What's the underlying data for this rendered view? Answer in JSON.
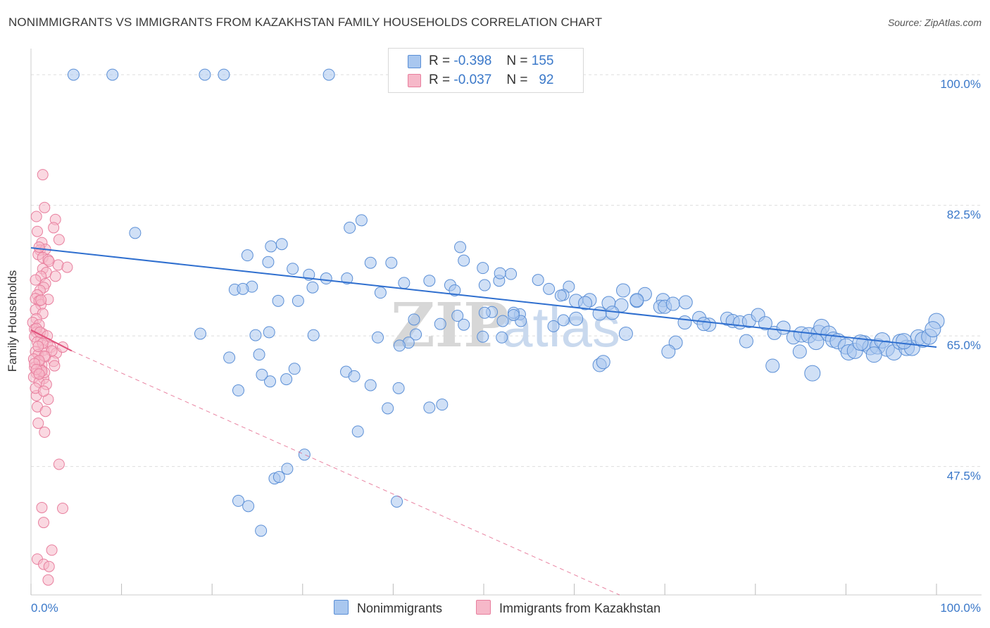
{
  "title": "NONIMMIGRANTS VS IMMIGRANTS FROM KAZAKHSTAN FAMILY HOUSEHOLDS CORRELATION CHART",
  "source": "Source: ZipAtlas.com",
  "watermark": {
    "zip": "ZIP",
    "atlas": "atlas"
  },
  "legend_top": [
    {
      "r_label": "R =",
      "r_value": "-0.398",
      "n_label": "N =",
      "n_value": "155"
    },
    {
      "r_label": "R =",
      "r_value": "-0.037",
      "n_label": "N =",
      "n_value": "92"
    }
  ],
  "legend_bottom": [
    "Nonimmigrants",
    "Immigrants from Kazakhstan"
  ],
  "colors": {
    "blue_fill": "#a9c7ef",
    "blue_stroke": "#5b8fd6",
    "blue_line": "#2f6fcf",
    "pink_fill": "#f6b8c9",
    "pink_stroke": "#e87f9e",
    "pink_line": "#e0507a",
    "tick_text": "#3a78c9",
    "grid": "#dddddd"
  },
  "chart_data": {
    "type": "scatter",
    "title": "NONIMMIGRANTS VS IMMIGRANTS FROM KAZAKHSTAN FAMILY HOUSEHOLDS CORRELATION CHART",
    "xlabel": "",
    "ylabel": "Family Households",
    "xlim": [
      0,
      100
    ],
    "ylim": [
      30.3,
      103.5
    ],
    "x_tick_labels": [
      "0.0%",
      "100.0%"
    ],
    "y_ticks": [
      47.5,
      65.0,
      82.5,
      100.0
    ],
    "y_tick_labels": [
      "47.5%",
      "65.0%",
      "82.5%",
      "100.0%"
    ],
    "series": [
      {
        "name": "Nonimmigrants",
        "color": "#5b8fd6",
        "R": -0.398,
        "N": 155,
        "trend": {
          "x": [
            0,
            100
          ],
          "y": [
            76.8,
            63.5
          ]
        },
        "points": [
          [
            4.7,
            100
          ],
          [
            9.0,
            100
          ],
          [
            19.2,
            100
          ],
          [
            21.3,
            100
          ],
          [
            32.9,
            100
          ],
          [
            11.5,
            78.8
          ],
          [
            36.5,
            80.5
          ],
          [
            35.2,
            79.5
          ],
          [
            26.5,
            77.0
          ],
          [
            27.7,
            77.3
          ],
          [
            47.4,
            76.9
          ],
          [
            23.9,
            75.8
          ],
          [
            37.5,
            74.8
          ],
          [
            39.8,
            74.8
          ],
          [
            26.2,
            74.9
          ],
          [
            28.9,
            74.0
          ],
          [
            30.7,
            73.2
          ],
          [
            32.6,
            72.7
          ],
          [
            34.9,
            72.7
          ],
          [
            31.1,
            71.5
          ],
          [
            24.4,
            71.6
          ],
          [
            22.5,
            71.2
          ],
          [
            23.4,
            71.3
          ],
          [
            38.6,
            70.8
          ],
          [
            46.3,
            71.8
          ],
          [
            46.8,
            71.1
          ],
          [
            50.1,
            71.8
          ],
          [
            51.7,
            72.4
          ],
          [
            49.9,
            74.1
          ],
          [
            47.8,
            75.1
          ],
          [
            53.0,
            73.3
          ],
          [
            51.8,
            73.4
          ],
          [
            41.2,
            72.1
          ],
          [
            44.0,
            72.4
          ],
          [
            56.0,
            72.5
          ],
          [
            59.4,
            71.6
          ],
          [
            65.4,
            71.1
          ],
          [
            58.8,
            70.5
          ],
          [
            67.8,
            70.6
          ],
          [
            60.2,
            69.7
          ],
          [
            61.7,
            69.8
          ],
          [
            63.8,
            69.4
          ],
          [
            66.9,
            69.7
          ],
          [
            69.8,
            69.8
          ],
          [
            65.2,
            69.1
          ],
          [
            69.5,
            68.9
          ],
          [
            70.0,
            68.9
          ],
          [
            70.9,
            69.3
          ],
          [
            72.3,
            69.5
          ],
          [
            64.2,
            68.1
          ],
          [
            62.8,
            68.0
          ],
          [
            60.2,
            67.3
          ],
          [
            58.8,
            67.1
          ],
          [
            54.0,
            67.9
          ],
          [
            53.3,
            68.1
          ],
          [
            50.9,
            68.2
          ],
          [
            50.1,
            68.1
          ],
          [
            47.1,
            67.7
          ],
          [
            42.3,
            67.2
          ],
          [
            57.7,
            66.3
          ],
          [
            54.1,
            67.0
          ],
          [
            57.2,
            71.3
          ],
          [
            72.2,
            66.8
          ],
          [
            73.8,
            67.4
          ],
          [
            74.9,
            66.5
          ],
          [
            76.9,
            67.3
          ],
          [
            77.5,
            67.0
          ],
          [
            78.3,
            66.8
          ],
          [
            79.3,
            67.0
          ],
          [
            80.3,
            67.8
          ],
          [
            81.1,
            66.7
          ],
          [
            82.1,
            65.4
          ],
          [
            83.1,
            66.1
          ],
          [
            84.2,
            64.8
          ],
          [
            85.1,
            65.2
          ],
          [
            85.9,
            65.1
          ],
          [
            87.0,
            65.4
          ],
          [
            87.3,
            66.2
          ],
          [
            88.1,
            65.3
          ],
          [
            88.6,
            64.5
          ],
          [
            89.1,
            64.3
          ],
          [
            90.0,
            63.6
          ],
          [
            90.3,
            62.8
          ],
          [
            91.0,
            63.0
          ],
          [
            92.0,
            64.0
          ],
          [
            92.7,
            63.5
          ],
          [
            93.5,
            63.6
          ],
          [
            94.0,
            64.4
          ],
          [
            94.5,
            63.3
          ],
          [
            95.3,
            62.8
          ],
          [
            96.0,
            64.2
          ],
          [
            96.7,
            63.4
          ],
          [
            97.3,
            63.4
          ],
          [
            98.0,
            64.8
          ],
          [
            98.5,
            64.5
          ],
          [
            99.2,
            64.9
          ],
          [
            100.0,
            67.0
          ],
          [
            99.6,
            65.9
          ],
          [
            96.4,
            64.3
          ],
          [
            93.1,
            62.5
          ],
          [
            91.6,
            64.1
          ],
          [
            86.7,
            64.2
          ],
          [
            84.9,
            62.9
          ],
          [
            81.9,
            61.0
          ],
          [
            86.3,
            60.0
          ],
          [
            79.0,
            64.3
          ],
          [
            74.3,
            66.6
          ],
          [
            71.2,
            64.1
          ],
          [
            70.4,
            62.9
          ],
          [
            66.9,
            69.8
          ],
          [
            65.7,
            65.3
          ],
          [
            62.8,
            61.1
          ],
          [
            63.2,
            61.5
          ],
          [
            53.3,
            67.8
          ],
          [
            52.1,
            67.0
          ],
          [
            58.5,
            70.4
          ],
          [
            61.2,
            69.4
          ],
          [
            49.9,
            64.9
          ],
          [
            52.0,
            64.8
          ],
          [
            47.8,
            66.5
          ],
          [
            45.2,
            66.6
          ],
          [
            42.5,
            65.2
          ],
          [
            41.7,
            64.1
          ],
          [
            38.3,
            64.8
          ],
          [
            31.2,
            65.1
          ],
          [
            29.5,
            69.7
          ],
          [
            27.3,
            69.7
          ],
          [
            26.3,
            65.5
          ],
          [
            25.2,
            62.5
          ],
          [
            21.9,
            62.1
          ],
          [
            18.7,
            65.3
          ],
          [
            28.2,
            59.2
          ],
          [
            26.4,
            58.9
          ],
          [
            29.1,
            60.6
          ],
          [
            22.9,
            57.7
          ],
          [
            34.8,
            60.2
          ],
          [
            40.6,
            58.0
          ],
          [
            45.4,
            55.8
          ],
          [
            44.0,
            55.4
          ],
          [
            39.4,
            55.3
          ],
          [
            36.1,
            52.2
          ],
          [
            26.9,
            45.9
          ],
          [
            22.9,
            42.9
          ],
          [
            25.4,
            38.9
          ],
          [
            40.4,
            42.8
          ],
          [
            30.2,
            49.1
          ],
          [
            28.3,
            47.2
          ],
          [
            27.4,
            46.1
          ],
          [
            24.0,
            42.2
          ],
          [
            24.8,
            65.1
          ],
          [
            25.5,
            59.8
          ],
          [
            35.7,
            59.6
          ],
          [
            37.5,
            58.4
          ],
          [
            40.7,
            63.7
          ]
        ]
      },
      {
        "name": "Immigrants from Kazakhstan",
        "color": "#e87f9e",
        "R": -0.037,
        "N": 92,
        "trend_solid": {
          "x": [
            0,
            4.5
          ],
          "y": [
            65.8,
            63.0
          ]
        },
        "trend_dashed": {
          "x": [
            4.5,
            65
          ],
          "y": [
            63.0,
            30.3
          ]
        },
        "points": [
          [
            1.3,
            86.6
          ],
          [
            1.5,
            82.2
          ],
          [
            0.6,
            81.0
          ],
          [
            2.7,
            80.6
          ],
          [
            2.5,
            79.5
          ],
          [
            0.7,
            79.0
          ],
          [
            3.1,
            77.9
          ],
          [
            1.2,
            77.5
          ],
          [
            1.0,
            76.5
          ],
          [
            1.6,
            76.6
          ],
          [
            0.8,
            75.9
          ],
          [
            1.3,
            75.5
          ],
          [
            1.9,
            75.2
          ],
          [
            2.0,
            75.0
          ],
          [
            3.0,
            74.5
          ],
          [
            1.3,
            74.0
          ],
          [
            1.7,
            73.5
          ],
          [
            1.1,
            73.0
          ],
          [
            0.5,
            72.5
          ],
          [
            1.6,
            72.0
          ],
          [
            1.4,
            71.5
          ],
          [
            1.0,
            71.1
          ],
          [
            0.7,
            70.5
          ],
          [
            0.5,
            70.0
          ],
          [
            0.9,
            69.7
          ],
          [
            1.1,
            69.2
          ],
          [
            0.5,
            68.5
          ],
          [
            1.3,
            68.0
          ],
          [
            0.6,
            67.3
          ],
          [
            0.2,
            66.8
          ],
          [
            0.9,
            66.5
          ],
          [
            0.4,
            65.9
          ],
          [
            0.6,
            65.5
          ],
          [
            1.3,
            65.3
          ],
          [
            0.4,
            64.9
          ],
          [
            1.1,
            64.5
          ],
          [
            0.7,
            64.2
          ],
          [
            1.8,
            64.0
          ],
          [
            2.2,
            63.5
          ],
          [
            1.4,
            63.1
          ],
          [
            0.5,
            62.9
          ],
          [
            0.8,
            62.5
          ],
          [
            1.6,
            62.2
          ],
          [
            0.3,
            61.9
          ],
          [
            0.9,
            61.5
          ],
          [
            1.2,
            61.1
          ],
          [
            0.4,
            60.8
          ],
          [
            1.1,
            60.5
          ],
          [
            0.6,
            60.0
          ],
          [
            0.3,
            59.5
          ],
          [
            1.4,
            59.3
          ],
          [
            0.9,
            58.8
          ],
          [
            2.8,
            62.7
          ],
          [
            2.5,
            61.6
          ],
          [
            1.5,
            60.1
          ],
          [
            0.6,
            57.0
          ],
          [
            1.9,
            56.5
          ],
          [
            0.7,
            55.5
          ],
          [
            1.6,
            54.9
          ],
          [
            0.8,
            53.3
          ],
          [
            1.5,
            52.1
          ],
          [
            3.1,
            47.8
          ],
          [
            1.2,
            42.0
          ],
          [
            3.5,
            41.9
          ],
          [
            1.4,
            40.0
          ],
          [
            2.3,
            36.3
          ],
          [
            0.7,
            35.1
          ],
          [
            1.4,
            34.4
          ],
          [
            2.0,
            34.1
          ],
          [
            1.9,
            32.3
          ],
          [
            4.0,
            74.2
          ],
          [
            2.7,
            73.0
          ],
          [
            0.9,
            76.9
          ],
          [
            1.9,
            69.9
          ],
          [
            1.1,
            69.8
          ],
          [
            0.6,
            66.0
          ],
          [
            1.0,
            65.5
          ],
          [
            3.5,
            63.5
          ],
          [
            2.3,
            63.0
          ],
          [
            1.5,
            62.3
          ],
          [
            0.9,
            61.7
          ],
          [
            0.4,
            61.3
          ],
          [
            1.2,
            60.3
          ],
          [
            0.6,
            60.5
          ],
          [
            1.8,
            65.0
          ],
          [
            2.6,
            61.0
          ],
          [
            1.7,
            58.5
          ],
          [
            0.5,
            58.0
          ],
          [
            1.4,
            57.6
          ],
          [
            0.9,
            59.9
          ],
          [
            1.3,
            64.0
          ],
          [
            0.8,
            63.6
          ]
        ]
      }
    ]
  }
}
